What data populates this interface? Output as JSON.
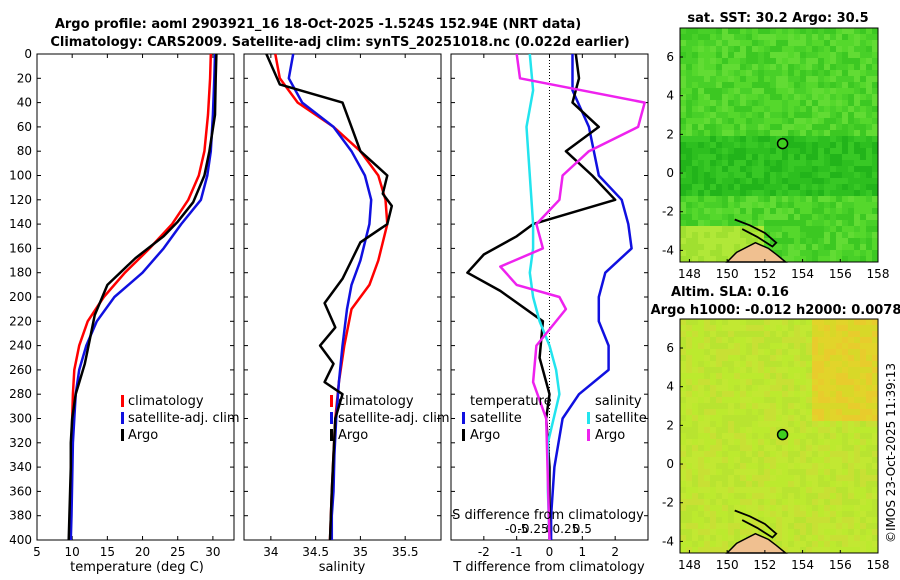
{
  "titles": {
    "line1": "Argo profile: aoml 2903921_16 18-Oct-2025 -1.524S 152.94E (NRT data)",
    "line2": "Climatology: CARS2009. Satellite-adj clim: synTS_20251018.nc (0.022d earlier)",
    "map1": "sat. SST: 30.2 Argo: 30.5",
    "map2a": "Altim. SLA: 0.16",
    "map2b": "Argo h1000: -0.012 h2000: 0.0078",
    "watermark": "©IMOS 23-Oct-2025 11:39:13"
  },
  "colors": {
    "climatology": "#ff0000",
    "satellite": "#1010e0",
    "argo": "#000000",
    "sat_salinity": "#22e4ee",
    "argo_salinity": "#ee22ee",
    "ocean_map1": "#3fcf1f",
    "ocean_map2": "#c8e830",
    "land": "#f0c090"
  },
  "depth_ticks": [
    0,
    20,
    40,
    60,
    80,
    100,
    120,
    140,
    160,
    180,
    200,
    220,
    240,
    260,
    280,
    300,
    320,
    340,
    360,
    380,
    400
  ],
  "legends": {
    "temp": [
      "climatology",
      "satellite-adj. clim",
      "Argo"
    ],
    "sal": [
      "climatology",
      "satellite-adj. clim",
      "Argo"
    ],
    "diff_head_t": "temperature",
    "diff_head_s": "salinity",
    "diff_t": [
      "satellite",
      "Argo"
    ],
    "diff_s": [
      "satellite",
      "Argo"
    ]
  },
  "chart_data": [
    {
      "type": "line",
      "name": "temperature",
      "xlabel": "temperature (deg C)",
      "ylabel": "",
      "xlim": [
        5,
        33
      ],
      "ylim": [
        400,
        0
      ],
      "xticks": [
        5,
        10,
        15,
        20,
        25,
        30
      ],
      "series": [
        {
          "name": "climatology",
          "x": [
            29.7,
            29.6,
            29.3,
            28.8,
            28.0,
            26.5,
            24.2,
            21.0,
            17.5,
            14.5,
            12.2,
            11.0,
            10.3,
            10.1,
            10.0,
            9.9,
            9.8,
            9.7,
            9.6
          ],
          "y": [
            0,
            20,
            50,
            80,
            100,
            120,
            140,
            160,
            180,
            200,
            220,
            240,
            260,
            280,
            300,
            320,
            350,
            380,
            400
          ]
        },
        {
          "name": "satellite-adj. clim",
          "x": [
            30.3,
            30.2,
            30.0,
            29.7,
            29.2,
            28.3,
            25.5,
            23.0,
            20.0,
            16.0,
            13.5,
            12.0,
            11.0,
            10.5,
            10.3,
            10.1,
            10.0,
            9.9,
            9.8
          ],
          "y": [
            0,
            20,
            50,
            80,
            100,
            120,
            140,
            160,
            180,
            200,
            220,
            240,
            260,
            280,
            300,
            320,
            350,
            380,
            400
          ]
        },
        {
          "name": "Argo",
          "x": [
            30.5,
            30.4,
            30.3,
            29.5,
            28.8,
            27.2,
            25.0,
            23.0,
            19.0,
            15.0,
            13.2,
            12.5,
            11.8,
            10.5,
            10.0,
            9.8,
            9.8,
            9.7,
            9.6,
            9.5
          ],
          "y": [
            0,
            20,
            50,
            80,
            100,
            122,
            138,
            150,
            168,
            190,
            215,
            235,
            255,
            280,
            300,
            320,
            340,
            360,
            380,
            400
          ]
        }
      ]
    },
    {
      "type": "line",
      "name": "salinity",
      "xlabel": "salinity",
      "ylabel": "",
      "xlim": [
        33.7,
        35.9
      ],
      "ylim": [
        400,
        0
      ],
      "xticks": [
        34,
        34.5,
        35,
        35.5
      ],
      "xtick_labels": [
        "34",
        "34.5",
        "35",
        "35.5"
      ],
      "series": [
        {
          "name": "climatology",
          "x": [
            34.05,
            34.1,
            34.3,
            34.7,
            35.0,
            35.2,
            35.28,
            35.3,
            35.2,
            35.1,
            34.9,
            34.82,
            34.76,
            34.72,
            34.7,
            34.68,
            34.67,
            34.66
          ],
          "y": [
            0,
            20,
            40,
            60,
            80,
            100,
            120,
            140,
            170,
            190,
            210,
            240,
            270,
            300,
            330,
            360,
            380,
            400
          ]
        },
        {
          "name": "satellite-adj. clim",
          "x": [
            34.25,
            34.2,
            34.35,
            34.7,
            34.9,
            35.05,
            35.12,
            35.1,
            35.0,
            34.9,
            34.85,
            34.8,
            34.76,
            34.73,
            34.71,
            34.7,
            34.68,
            34.68
          ],
          "y": [
            0,
            20,
            40,
            60,
            80,
            100,
            120,
            140,
            170,
            190,
            210,
            240,
            270,
            300,
            330,
            360,
            380,
            400
          ]
        },
        {
          "name": "Argo",
          "x": [
            33.95,
            34.1,
            34.8,
            34.9,
            35.0,
            35.3,
            35.25,
            35.35,
            35.3,
            35.0,
            34.9,
            34.8,
            34.6,
            34.72,
            34.55,
            34.7,
            34.6,
            34.8,
            34.72,
            34.7,
            34.68,
            34.67,
            34.66
          ],
          "y": [
            0,
            25,
            40,
            60,
            80,
            100,
            115,
            125,
            140,
            155,
            170,
            185,
            205,
            225,
            240,
            255,
            270,
            280,
            300,
            330,
            360,
            380,
            400
          ]
        }
      ]
    },
    {
      "type": "line",
      "name": "difference",
      "xlabel": "T difference from climatology",
      "xlabel_top": "S difference from climatology",
      "xlim": [
        -3,
        3
      ],
      "ylim": [
        400,
        0
      ],
      "xticks": [
        -2,
        -1,
        0,
        1,
        2
      ],
      "xtick_labels": [
        "-2",
        "-1",
        "0",
        "1",
        "2"
      ],
      "s_tick_labels": [
        "-0.5",
        "-0.25",
        "0",
        "0.25",
        "0.5"
      ],
      "series": [
        {
          "name": "T satellite",
          "x": [
            0.7,
            0.7,
            1.2,
            1.5,
            2.2,
            2.4,
            2.5,
            1.7,
            1.5,
            1.5,
            1.8,
            1.8,
            0.9,
            0.4,
            0.15,
            0.05,
            0.05
          ],
          "y": [
            0,
            30,
            60,
            100,
            120,
            140,
            160,
            180,
            200,
            220,
            240,
            260,
            280,
            300,
            340,
            380,
            400
          ]
        },
        {
          "name": "T Argo",
          "x": [
            0.8,
            0.9,
            0.7,
            1.5,
            0.5,
            1.3,
            2.0,
            -0.5,
            -1.0,
            -2.0,
            -2.5,
            -1.5,
            -0.2,
            -0.3,
            0.0,
            -0.1,
            0.0,
            0.0,
            0.0
          ],
          "y": [
            0,
            20,
            40,
            60,
            80,
            100,
            120,
            140,
            150,
            165,
            180,
            195,
            220,
            250,
            280,
            300,
            340,
            380,
            400
          ]
        },
        {
          "name": "S satellite",
          "x": [
            -0.6,
            -0.5,
            -0.7,
            -0.6,
            -0.5,
            -0.5,
            -0.6,
            -0.5,
            -0.3,
            0.0,
            0.2,
            0.3,
            -0.05,
            -0.05,
            0.0
          ],
          "y": [
            0,
            30,
            60,
            100,
            140,
            160,
            180,
            200,
            220,
            240,
            260,
            280,
            320,
            360,
            400
          ]
        },
        {
          "name": "S Argo",
          "x": [
            -1.0,
            -0.9,
            2.9,
            2.7,
            1.2,
            0.4,
            0.3,
            -0.4,
            -0.2,
            -1.5,
            -1.0,
            0.3,
            0.5,
            -0.4,
            -0.5,
            -0.1,
            0.0
          ],
          "y": [
            0,
            20,
            40,
            60,
            80,
            100,
            120,
            140,
            160,
            175,
            190,
            200,
            210,
            240,
            270,
            300,
            400
          ]
        }
      ]
    },
    {
      "type": "heatmap",
      "name": "sat-sst-map",
      "title": "sat. SST: 30.2 Argo: 30.5",
      "xlim": [
        147.5,
        158
      ],
      "ylim": [
        -4.6,
        7.5
      ],
      "xticks": [
        148,
        150,
        152,
        154,
        156,
        158
      ],
      "yticks": [
        -4,
        -2,
        0,
        2,
        4,
        6
      ],
      "argo_position": [
        152.94,
        1.524
      ]
    },
    {
      "type": "heatmap",
      "name": "sla-map",
      "title": "Altim. SLA: 0.16",
      "xlim": [
        147.5,
        158
      ],
      "ylim": [
        -4.6,
        7.5
      ],
      "xticks": [
        148,
        150,
        152,
        154,
        156,
        158
      ],
      "yticks": [
        -4,
        -2,
        0,
        2,
        4,
        6
      ],
      "argo_position": [
        152.94,
        1.524
      ]
    }
  ]
}
